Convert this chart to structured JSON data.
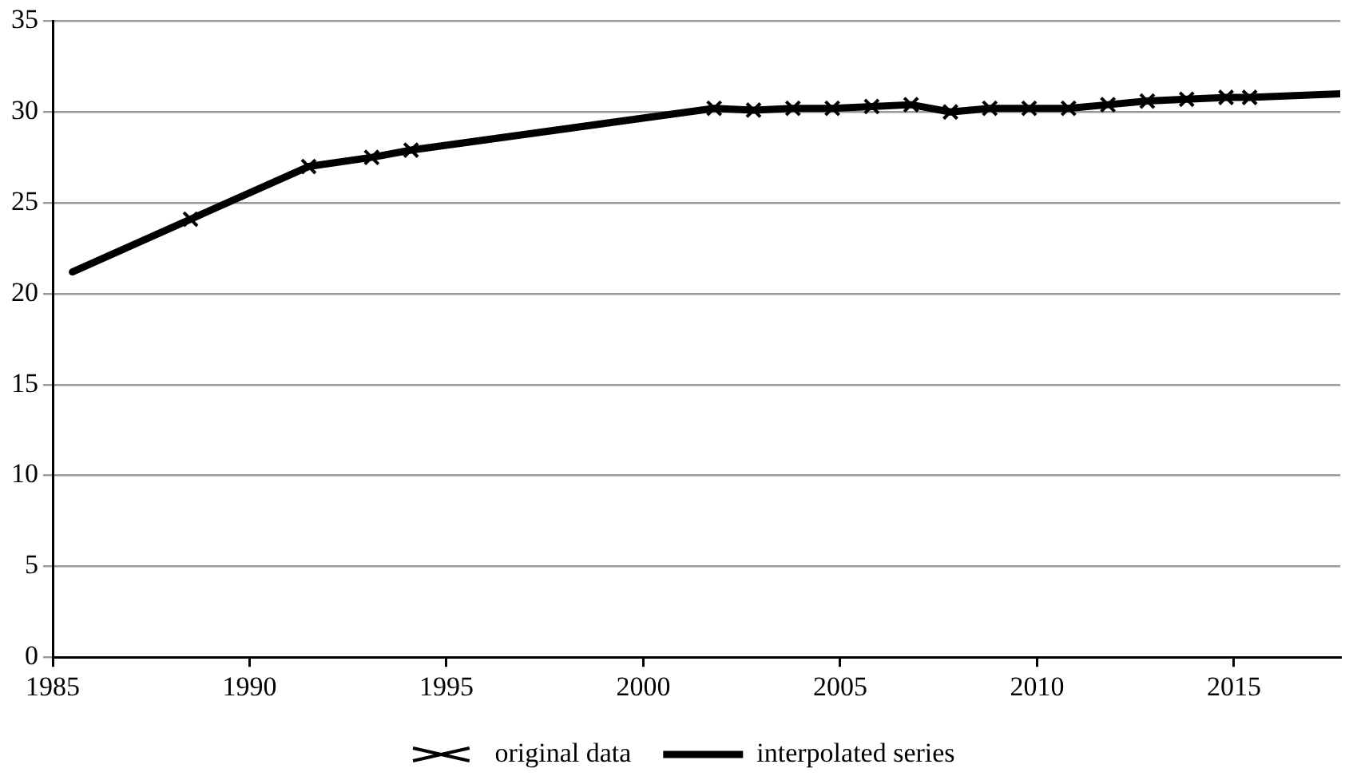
{
  "chart_data": {
    "type": "line",
    "xlim": [
      1985,
      2017.7
    ],
    "xticks": [
      1985,
      1990,
      1995,
      2000,
      2005,
      2010,
      2015
    ],
    "ylim": [
      0,
      35
    ],
    "yticks": [
      0,
      5,
      10,
      15,
      20,
      25,
      30,
      35
    ],
    "grid": "y",
    "legend": "bottom",
    "series": [
      {
        "name": "original data",
        "type": "scatter",
        "marker": "cross",
        "color": "#000000",
        "x": [
          1988.5,
          1991.5,
          1993.1,
          1994.1,
          2001.8,
          2002.8,
          2003.8,
          2004.8,
          2005.8,
          2006.8,
          2007.8,
          2008.8,
          2009.8,
          2010.8,
          2011.8,
          2012.8,
          2013.8,
          2014.8,
          2015.4
        ],
        "values": [
          24.1,
          27.0,
          27.5,
          27.9,
          30.2,
          30.1,
          30.2,
          30.2,
          30.3,
          30.4,
          30.0,
          30.2,
          30.2,
          30.2,
          30.4,
          30.6,
          30.7,
          30.8,
          30.8
        ]
      },
      {
        "name": "interpolated series",
        "marker": "none",
        "line_style": "solid",
        "color": "#000000",
        "x": [
          1985.5,
          1988.5,
          1991.5,
          1993.1,
          1994.1,
          2001.8,
          2002.8,
          2003.8,
          2004.8,
          2005.8,
          2006.8,
          2007.8,
          2008.8,
          2009.8,
          2010.8,
          2011.8,
          2012.8,
          2013.8,
          2014.8,
          2015.4,
          2017.7
        ],
        "values": [
          21.2,
          24.1,
          27.0,
          27.5,
          27.9,
          30.2,
          30.1,
          30.2,
          30.2,
          30.3,
          30.4,
          30.0,
          30.2,
          30.2,
          30.2,
          30.4,
          30.6,
          30.7,
          30.8,
          30.8,
          31.0
        ]
      }
    ]
  }
}
